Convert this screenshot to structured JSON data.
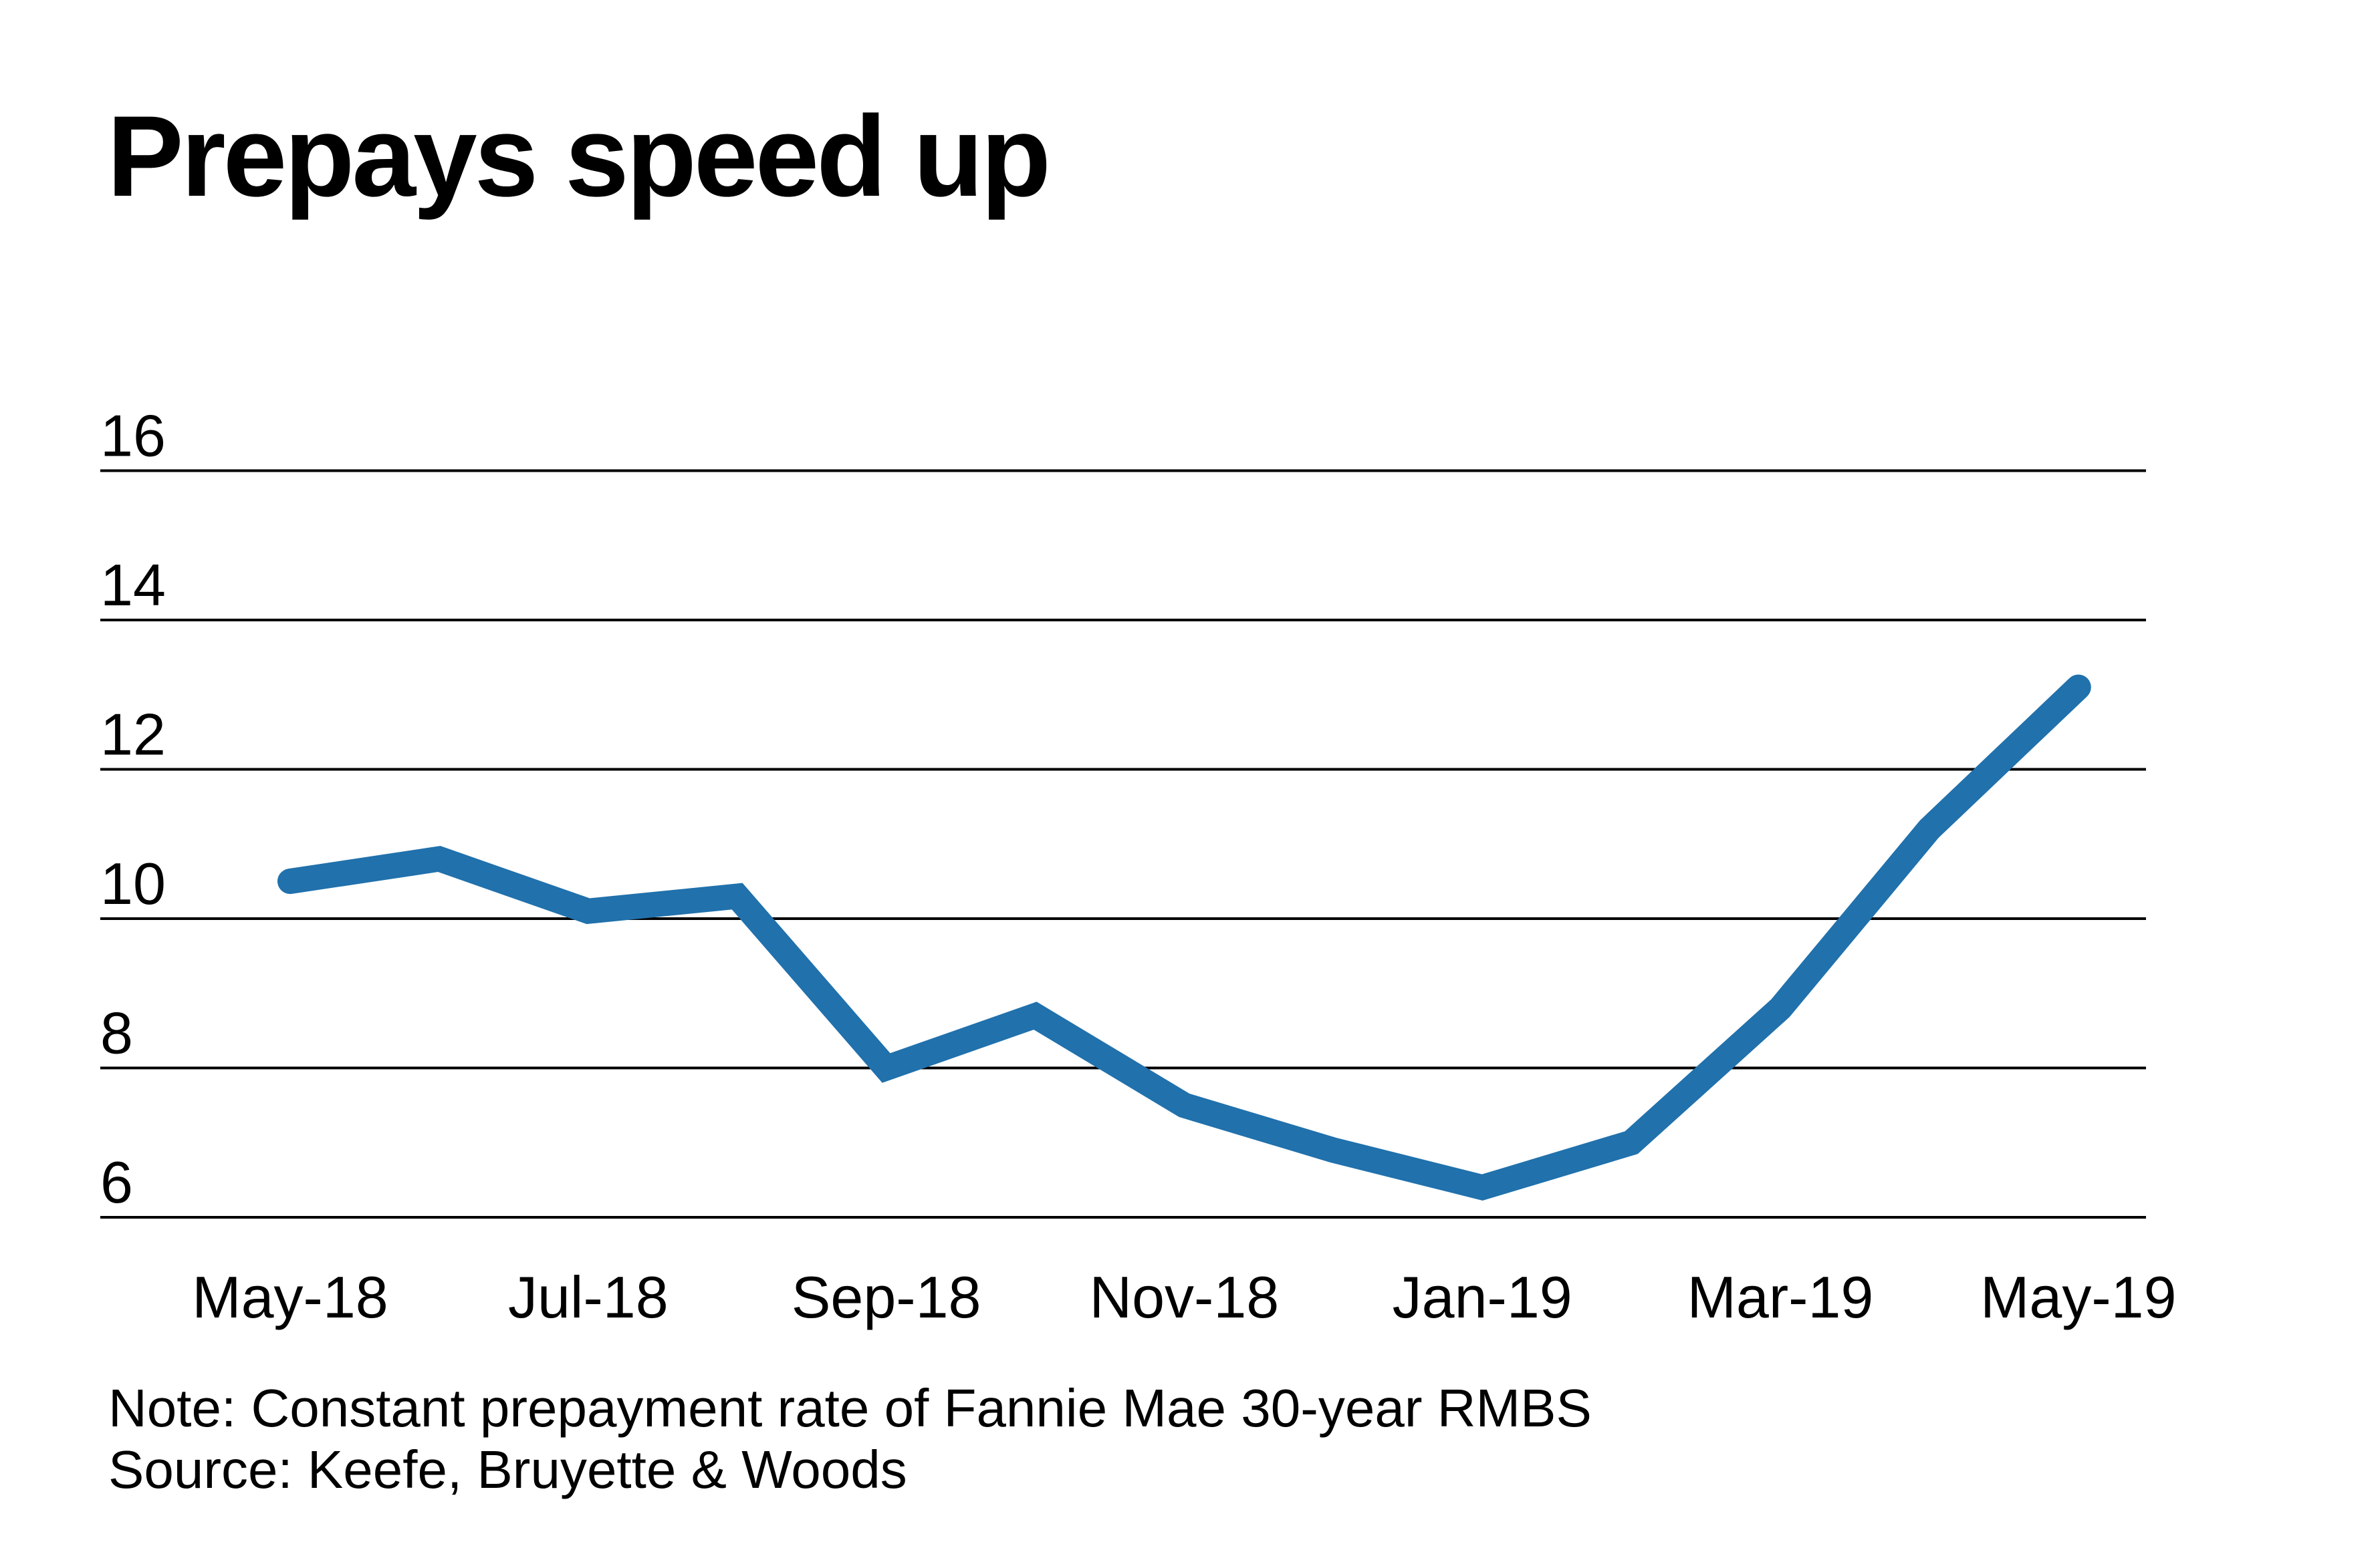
{
  "title": "Prepays speed up",
  "note": "Note: Constant prepayment rate of Fannie Mae 30-year RMBS",
  "source": "Source: Keefe, Bruyette & Woods",
  "colors": {
    "line": "#2071ac",
    "grid": "#000000",
    "text": "#000000",
    "background": "#ffffff"
  },
  "chart_data": {
    "type": "line",
    "title": "Prepays speed up",
    "x": [
      "May-18",
      "Jun-18",
      "Jul-18",
      "Aug-18",
      "Sep-18",
      "Oct-18",
      "Nov-18",
      "Dec-18",
      "Jan-19",
      "Feb-19",
      "Mar-19",
      "Apr-19",
      "May-19"
    ],
    "values": [
      10.5,
      10.8,
      10.1,
      10.3,
      8.0,
      8.7,
      7.5,
      6.9,
      6.4,
      7.0,
      8.8,
      11.2,
      13.1
    ],
    "x_tick_labels": [
      "May-18",
      "Jul-18",
      "Sep-18",
      "Nov-18",
      "Jan-19",
      "Mar-19",
      "May-19"
    ],
    "y_ticks": [
      16,
      14,
      12,
      10,
      8,
      6
    ],
    "ylim": [
      6,
      16
    ],
    "xlabel": "",
    "ylabel": "",
    "grid": "horizontal-only",
    "legend": false,
    "y_tick_label_position": "above-gridline-left",
    "series_name": "Constant prepayment rate, Fannie Mae 30-year RMBS"
  }
}
